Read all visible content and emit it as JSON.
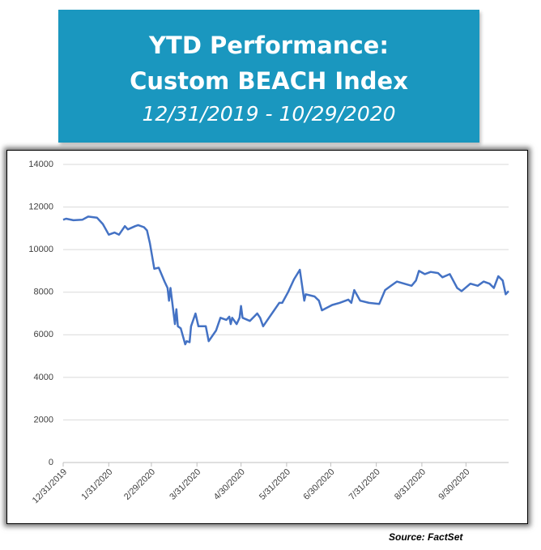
{
  "chart_data": {
    "type": "line",
    "title": "YTD Performance: Custom BEACH Index",
    "subtitle": "12/31/2019 - 10/29/2020",
    "source": "Source: FactSet",
    "color": "#4472c4",
    "grid": true,
    "x": [
      "12/31/2019",
      "1/2/2020",
      "1/7/2020",
      "1/13/2020",
      "1/17/2020",
      "1/23/2020",
      "1/27/2020",
      "1/31/2020",
      "2/4/2020",
      "2/7/2020",
      "2/11/2020",
      "2/13/2020",
      "2/18/2020",
      "2/20/2020",
      "2/24/2020",
      "2/26/2020",
      "2/28/2020",
      "3/2/2020",
      "3/5/2020",
      "3/9/2020",
      "3/11/2020",
      "3/12/2020",
      "3/13/2020",
      "3/16/2020",
      "3/17/2020",
      "3/18/2020",
      "3/20/2020",
      "3/23/2020",
      "3/24/2020",
      "3/26/2020",
      "3/27/2020",
      "3/30/2020",
      "4/1/2020",
      "4/6/2020",
      "4/8/2020",
      "4/13/2020",
      "4/16/2020",
      "4/20/2020",
      "4/22/2020",
      "4/23/2020",
      "4/24/2020",
      "4/27/2020",
      "4/29/2020",
      "4/30/2020",
      "5/1/2020",
      "5/6/2020",
      "5/11/2020",
      "5/13/2020",
      "5/15/2020",
      "5/18/2020",
      "5/22/2020",
      "5/26/2020",
      "5/28/2020",
      "6/1/2020",
      "6/5/2020",
      "6/9/2020",
      "6/12/2020",
      "6/13/2020",
      "6/19/2020",
      "6/22/2020",
      "6/24/2020",
      "7/1/2020",
      "7/6/2020",
      "7/12/2020",
      "7/14/2020",
      "7/16/2020",
      "7/20/2020",
      "7/26/2020",
      "8/2/2020",
      "8/6/2020",
      "8/10/2020",
      "8/14/2020",
      "8/19/2020",
      "8/24/2020",
      "8/27/2020",
      "8/29/2020",
      "9/2/2020",
      "9/6/2020",
      "9/11/2020",
      "9/14/2020",
      "9/19/2020",
      "9/24/2020",
      "9/27/2020",
      "10/3/2020",
      "10/8/2020",
      "10/12/2020",
      "10/16/2020",
      "10/19/2020",
      "10/22/2020",
      "10/25/2020",
      "10/27/2020",
      "10/29/2020"
    ],
    "values": [
      11400,
      11450,
      11380,
      11400,
      11550,
      11500,
      11200,
      10700,
      10800,
      10700,
      11100,
      10950,
      11100,
      11150,
      11050,
      10900,
      10300,
      9100,
      9150,
      8500,
      8200,
      7600,
      8200,
      6500,
      7200,
      6400,
      6300,
      5550,
      5700,
      5650,
      6400,
      7000,
      6400,
      6400,
      5700,
      6200,
      6800,
      6700,
      6850,
      6500,
      6800,
      6500,
      6800,
      7350,
      6800,
      6650,
      7000,
      6800,
      6400,
      6700,
      7100,
      7500,
      7500,
      8000,
      8600,
      9050,
      7600,
      7900,
      7800,
      7600,
      7150,
      7400,
      7500,
      7650,
      7500,
      8100,
      7600,
      7500,
      7450,
      8100,
      8300,
      8500,
      8400,
      8300,
      8550,
      9000,
      8850,
      8950,
      8900,
      8700,
      8850,
      8200,
      8050,
      8400,
      8300,
      8500,
      8400,
      8200,
      8750,
      8550,
      7900,
      8050
    ],
    "xlim": [
      "12/31/2019",
      "10/29/2020"
    ],
    "xticks": [
      "12/31/2019",
      "1/31/2020",
      "2/29/2020",
      "3/31/2020",
      "4/30/2020",
      "5/31/2020",
      "6/30/2020",
      "7/31/2020",
      "8/31/2020",
      "9/30/2020"
    ],
    "ylim": [
      0,
      14000
    ],
    "yticks": [
      0,
      2000,
      4000,
      6000,
      8000,
      10000,
      12000,
      14000
    ]
  }
}
